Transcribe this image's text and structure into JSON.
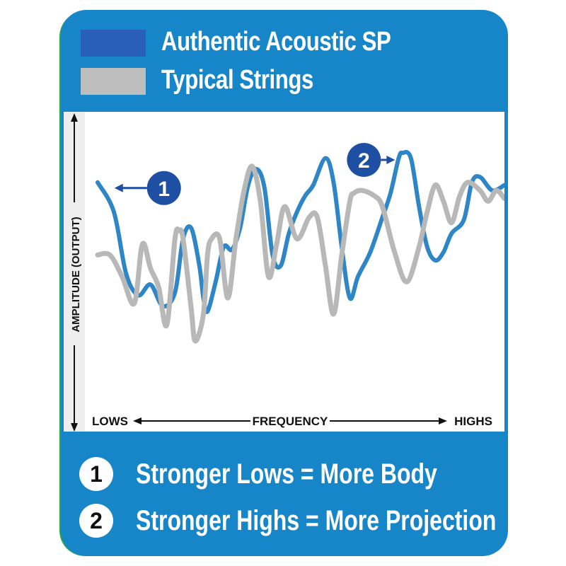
{
  "colors": {
    "card_bg": "#1786c8",
    "accent_edge": "#27a844",
    "series_authentic": "#2f86c6",
    "series_typical": "#b8b8b8",
    "legend_authentic_swatch": "#2a5fb8",
    "legend_typical_swatch": "#bdbdbd",
    "marker_fill": "#1f4fa3",
    "axis_color": "#111111",
    "plot_bg": "#ffffff",
    "plot_left_strip": "#eeeeee"
  },
  "legend": [
    {
      "label": "Authentic Acoustic SP"
    },
    {
      "label": "Typical Strings"
    }
  ],
  "chart_data": {
    "type": "line",
    "title": "",
    "xlabel": "FREQUENCY",
    "ylabel": "AMPLITUDE (OUTPUT)",
    "x_left_label": "LOWS",
    "x_right_label": "HIGHS",
    "xlim": [
      0,
      100
    ],
    "ylim": [
      0,
      100
    ],
    "grid": false,
    "legend_position": "top",
    "series": [
      {
        "name": "Authentic Acoustic SP",
        "color": "#2f86c6",
        "x": [
          0,
          4,
          7,
          10,
          13,
          16,
          19,
          21,
          23,
          25,
          26,
          27,
          29,
          31,
          33,
          35,
          37,
          39,
          41,
          43,
          45,
          47,
          49,
          51,
          53,
          56,
          58,
          60,
          62,
          64,
          67,
          70,
          72,
          74,
          75,
          77,
          79,
          81,
          83,
          85,
          87,
          90,
          92,
          94,
          97,
          100
        ],
        "y": [
          79,
          68,
          45,
          37,
          41,
          33,
          38,
          58,
          62,
          48,
          36,
          31,
          42,
          55,
          54,
          62,
          78,
          84,
          77,
          52,
          48,
          60,
          68,
          74,
          78,
          88,
          79,
          55,
          36,
          44,
          53,
          66,
          75,
          88,
          90,
          88,
          70,
          55,
          50,
          53,
          60,
          65,
          79,
          81,
          76,
          78
        ]
      },
      {
        "name": "Typical Strings",
        "color": "#b8b8b8",
        "x": [
          0,
          3,
          6,
          9,
          11,
          13,
          15,
          17,
          19,
          20,
          21,
          23,
          24,
          26,
          27,
          28,
          30,
          32,
          34,
          36,
          38,
          40,
          42,
          44,
          46,
          49,
          52,
          54,
          56,
          58,
          60,
          62,
          63,
          65,
          68,
          70,
          73,
          76,
          79,
          81,
          83,
          85,
          87,
          89,
          91,
          94,
          96,
          98,
          100
        ],
        "y": [
          52,
          52,
          44,
          34,
          56,
          47,
          40,
          26,
          58,
          61,
          58,
          32,
          20,
          30,
          52,
          58,
          58,
          36,
          58,
          76,
          85,
          72,
          44,
          56,
          70,
          58,
          66,
          66,
          48,
          30,
          52,
          72,
          75,
          76,
          74,
          70,
          53,
          42,
          55,
          68,
          78,
          72,
          64,
          74,
          79,
          76,
          72,
          76,
          73
        ]
      }
    ],
    "annotations": [
      {
        "label": "1",
        "x": 1,
        "y": 79
      },
      {
        "label": "2",
        "x": 74.5,
        "y": 90
      }
    ]
  },
  "callouts": [
    {
      "number": "1",
      "text": "Stronger Lows = More Body"
    },
    {
      "number": "2",
      "text": "Stronger Highs = More Projection"
    }
  ]
}
